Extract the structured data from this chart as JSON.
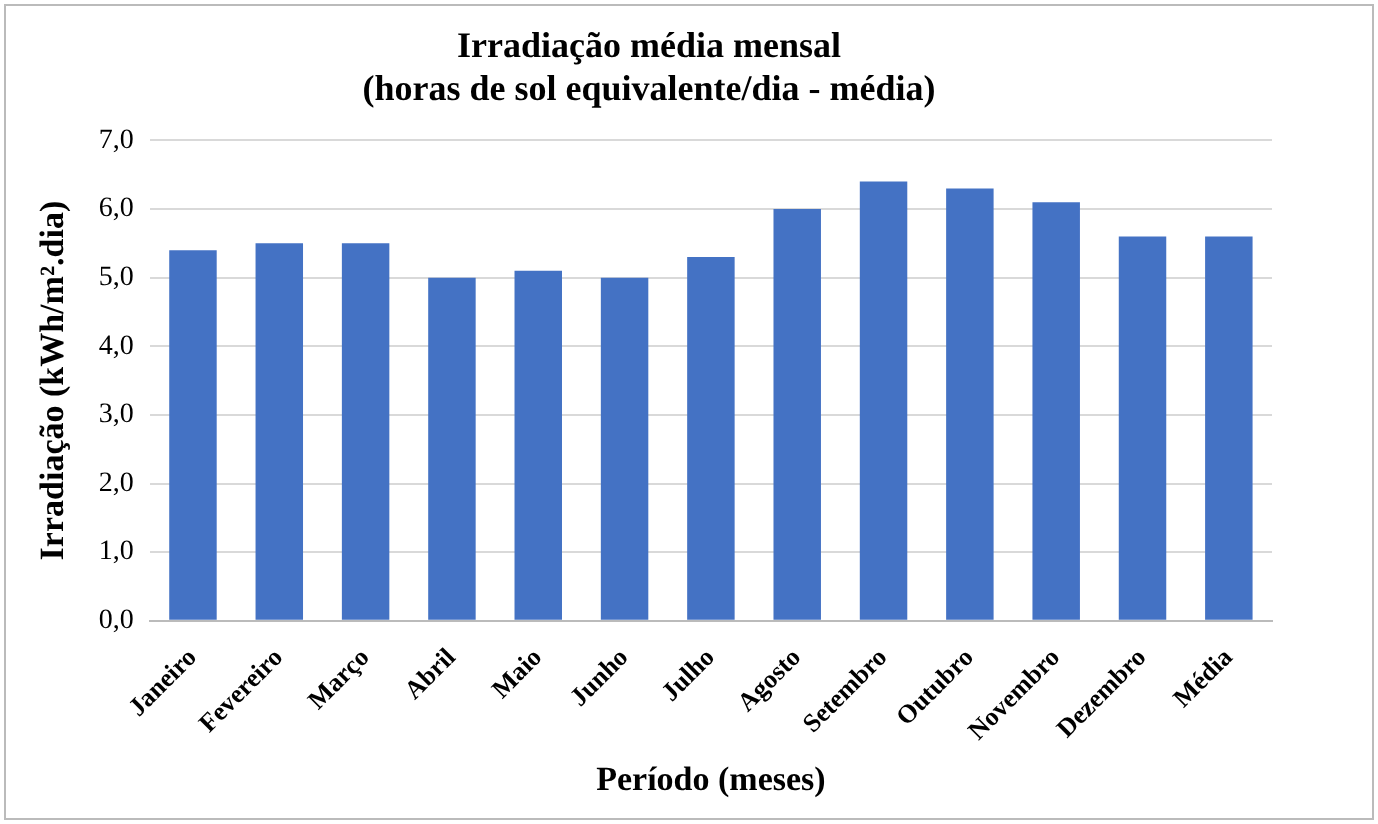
{
  "chart_data": {
    "type": "bar",
    "title": "Irradiação média mensal",
    "subtitle": "(horas de sol equivalente/dia - média)",
    "xlabel": "Período (meses)",
    "ylabel": "Irradiação (kWh/m².dia)",
    "categories": [
      "Janeiro",
      "Fevereiro",
      "Março",
      "Abril",
      "Maio",
      "Junho",
      "Julho",
      "Agosto",
      "Setembro",
      "Outubro",
      "Novembro",
      "Dezembro",
      "Média"
    ],
    "values": [
      5.4,
      5.5,
      5.5,
      5.0,
      5.1,
      5.0,
      5.3,
      6.0,
      6.4,
      6.3,
      6.1,
      5.6,
      5.6
    ],
    "color": "#4472c4",
    "ylim": [
      0,
      7
    ],
    "yticks": [
      {
        "value": 0,
        "label": "0,0"
      },
      {
        "value": 1,
        "label": "1,0"
      },
      {
        "value": 2,
        "label": "2,0"
      },
      {
        "value": 3,
        "label": "3,0"
      },
      {
        "value": 4,
        "label": "4,0"
      },
      {
        "value": 5,
        "label": "5,0"
      },
      {
        "value": 6,
        "label": "6,0"
      },
      {
        "value": 7,
        "label": "7,0"
      }
    ],
    "grid": "y",
    "legend": false
  }
}
